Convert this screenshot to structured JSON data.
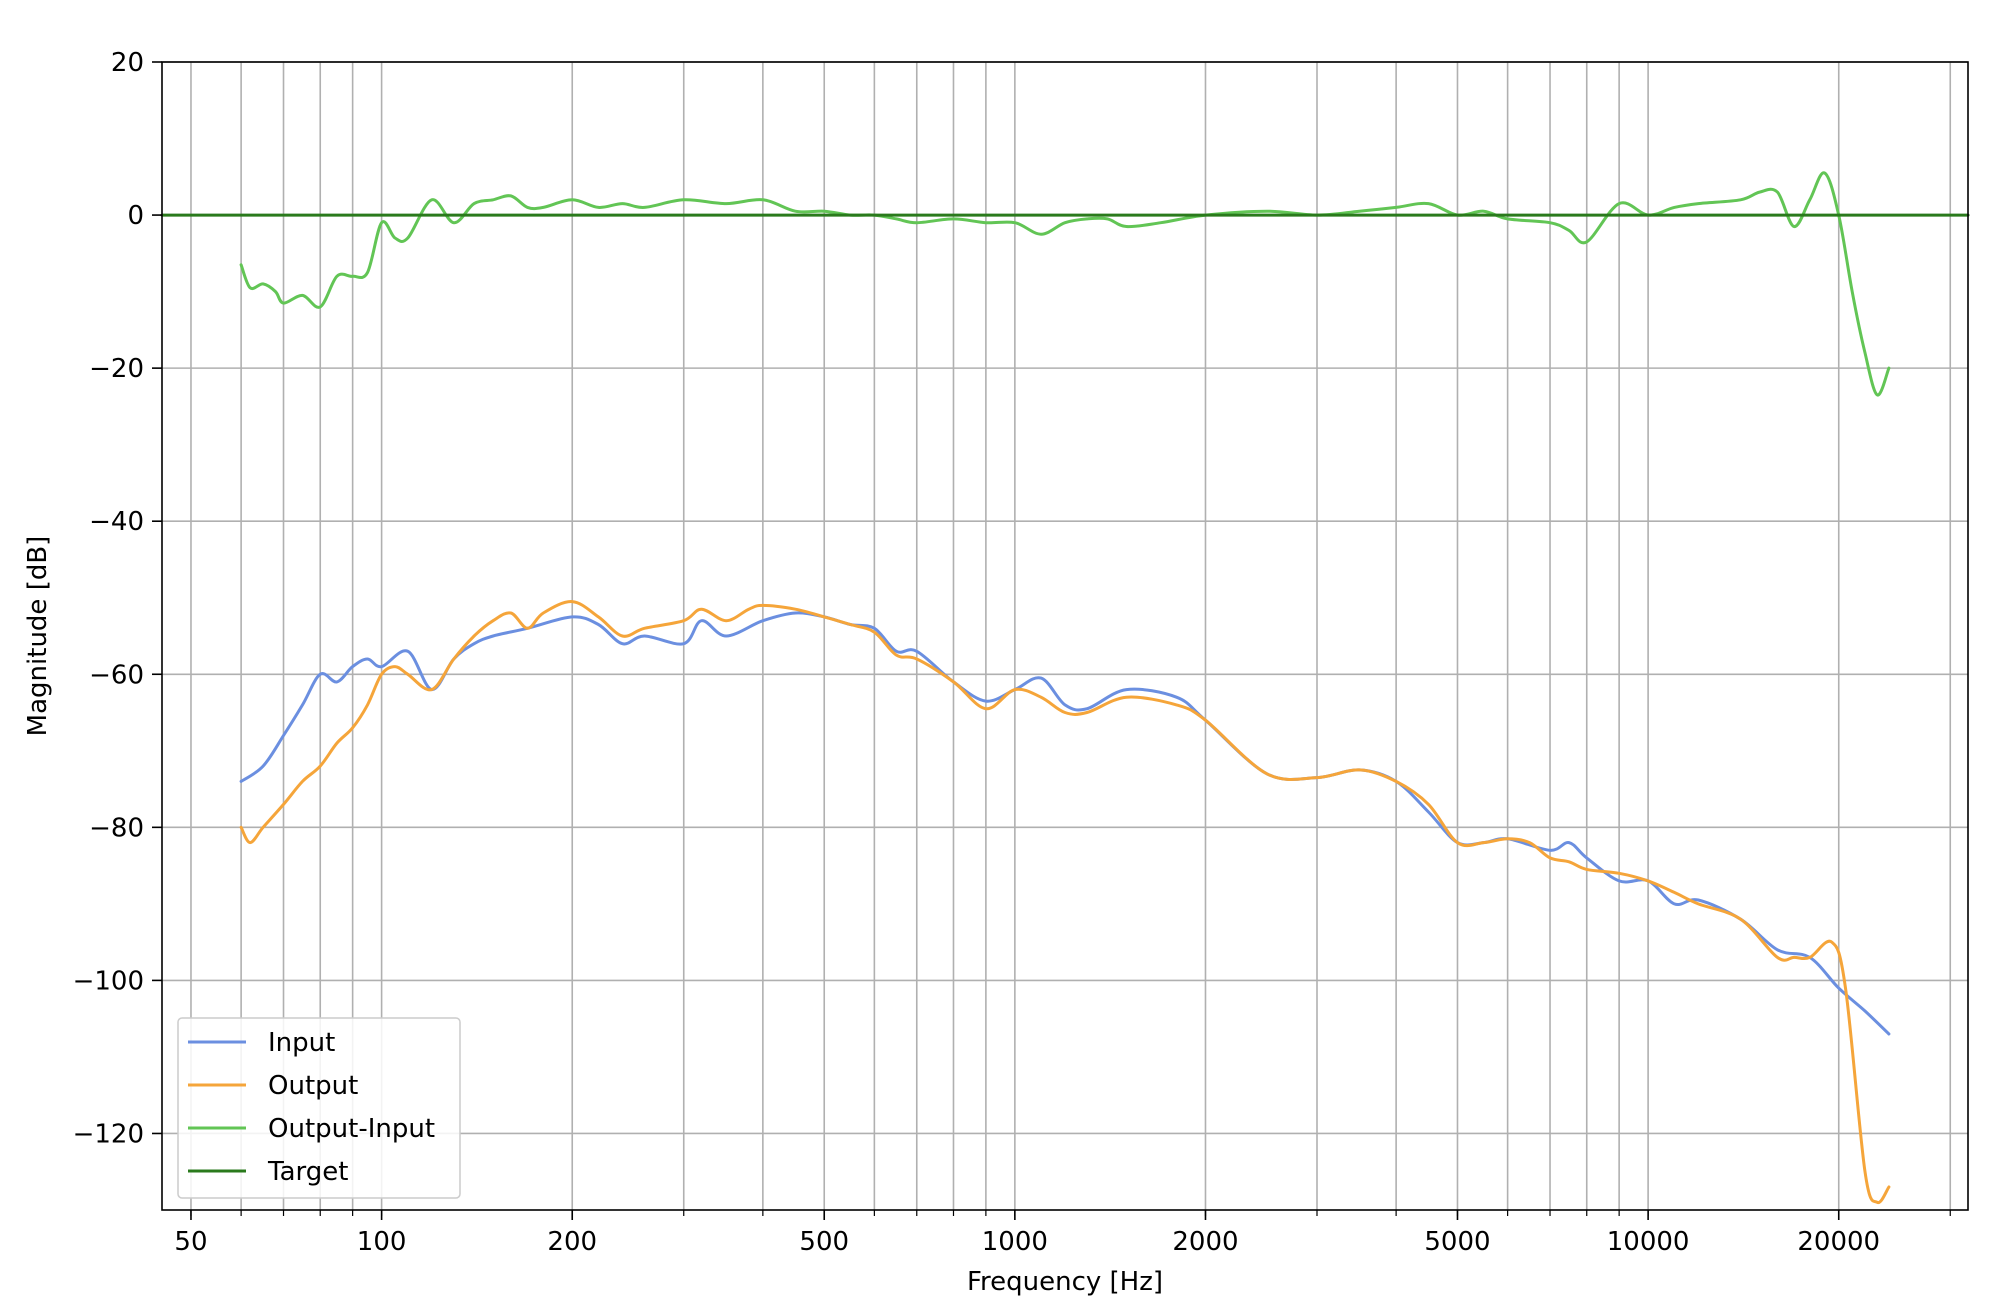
{
  "chart_data": {
    "type": "line",
    "xlabel": "Frequency [Hz]",
    "ylabel": "Magnitude [dB]",
    "xscale": "log",
    "xlim": [
      45,
      32000
    ],
    "ylim": [
      -130,
      20
    ],
    "xticks": [
      50,
      100,
      200,
      500,
      1000,
      2000,
      5000,
      10000,
      20000
    ],
    "xtick_labels": [
      "50",
      "100",
      "200",
      "500",
      "1000",
      "2000",
      "5000",
      "10000",
      "20000"
    ],
    "yticks": [
      20,
      0,
      -20,
      -40,
      -60,
      -80,
      -100,
      -120
    ],
    "ytick_labels": [
      "20",
      "0",
      "−20",
      "−40",
      "−60",
      "−80",
      "−100",
      "−120"
    ],
    "grid": true,
    "legend_position": "lower-left",
    "series": [
      {
        "name": "Input",
        "color": "#6b8fe0",
        "x": [
          60,
          65,
          70,
          75,
          80,
          85,
          90,
          95,
          100,
          110,
          120,
          130,
          140,
          150,
          170,
          200,
          220,
          240,
          260,
          300,
          320,
          350,
          400,
          450,
          500,
          550,
          600,
          650,
          700,
          800,
          900,
          1000,
          1100,
          1200,
          1300,
          1500,
          1800,
          2000,
          2500,
          3000,
          3500,
          4000,
          4500,
          5000,
          5500,
          6000,
          7000,
          7500,
          8000,
          9000,
          10000,
          11000,
          12000,
          14000,
          16000,
          18000,
          20000,
          22000,
          24000
        ],
        "y": [
          -74,
          -72,
          -68,
          -64,
          -60,
          -61,
          -59,
          -58,
          -59,
          -57,
          -62,
          -58,
          -56,
          -55,
          -54,
          -52.5,
          -53.5,
          -56,
          -55,
          -56,
          -53,
          -55,
          -53,
          -52,
          -52.5,
          -53.5,
          -54,
          -57,
          -57,
          -61,
          -63.5,
          -62,
          -60.5,
          -64,
          -64.5,
          -62,
          -63,
          -66,
          -73,
          -73.5,
          -72.5,
          -74,
          -78,
          -82,
          -82,
          -81.5,
          -83,
          -82,
          -84,
          -87,
          -87,
          -90,
          -89.5,
          -92,
          -96,
          -97,
          -101,
          -104,
          -107
        ]
      },
      {
        "name": "Output",
        "color": "#f5a53a",
        "x": [
          60,
          62,
          65,
          70,
          75,
          80,
          85,
          90,
          95,
          100,
          105,
          110,
          120,
          130,
          140,
          150,
          160,
          170,
          180,
          200,
          220,
          240,
          260,
          300,
          320,
          350,
          380,
          400,
          450,
          500,
          550,
          600,
          650,
          700,
          800,
          900,
          1000,
          1100,
          1200,
          1300,
          1500,
          1800,
          2000,
          2500,
          3000,
          3500,
          4000,
          4500,
          5000,
          5500,
          6000,
          6500,
          7000,
          7500,
          8000,
          9000,
          10000,
          11000,
          12000,
          14000,
          16000,
          17000,
          18000,
          19500,
          20500,
          22000,
          23000,
          24000
        ],
        "y": [
          -80,
          -82,
          -80,
          -77,
          -74,
          -72,
          -69,
          -67,
          -64,
          -60,
          -59,
          -60,
          -62,
          -58,
          -55,
          -53,
          -52,
          -54,
          -52,
          -50.5,
          -52.5,
          -55,
          -54,
          -53,
          -51.5,
          -53,
          -51.5,
          -51,
          -51.5,
          -52.5,
          -53.5,
          -54.5,
          -57.5,
          -58,
          -61,
          -64.5,
          -62,
          -63,
          -65,
          -65,
          -63,
          -64,
          -66,
          -73,
          -73.5,
          -72.5,
          -74,
          -77,
          -82,
          -82,
          -81.5,
          -82,
          -84,
          -84.5,
          -85.5,
          -86,
          -87,
          -88.5,
          -90,
          -92,
          -97,
          -97,
          -97,
          -95,
          -101,
          -125,
          -129,
          -127
        ]
      },
      {
        "name": "Output-Input",
        "color": "#62c555",
        "x": [
          60,
          62,
          65,
          68,
          70,
          75,
          80,
          85,
          90,
          95,
          100,
          105,
          110,
          120,
          130,
          140,
          150,
          160,
          170,
          180,
          200,
          220,
          240,
          260,
          300,
          350,
          400,
          450,
          500,
          550,
          600,
          650,
          700,
          800,
          900,
          1000,
          1100,
          1200,
          1300,
          1400,
          1500,
          1700,
          2000,
          2500,
          3000,
          3500,
          4000,
          4500,
          5000,
          5500,
          6000,
          7000,
          7500,
          8000,
          9000,
          10000,
          11000,
          12000,
          14000,
          15000,
          16000,
          17000,
          18000,
          19000,
          20000,
          21000,
          22000,
          23000,
          24000
        ],
        "y": [
          -6.5,
          -9.5,
          -9,
          -10,
          -11.5,
          -10.5,
          -12,
          -8,
          -8,
          -7.5,
          -1,
          -3,
          -3,
          2,
          -1,
          1.5,
          2,
          2.5,
          1,
          1,
          2,
          1,
          1.5,
          1,
          2,
          1.5,
          2,
          0.5,
          0.5,
          0,
          0,
          -0.5,
          -1,
          -0.5,
          -1,
          -1,
          -2.5,
          -1,
          -0.5,
          -0.5,
          -1.5,
          -1,
          0,
          0.5,
          0,
          0.5,
          1,
          1.5,
          0,
          0.5,
          -0.5,
          -1,
          -2,
          -3.5,
          1.5,
          0,
          1,
          1.5,
          2,
          3,
          3,
          -1.5,
          2,
          5.5,
          0,
          -10,
          -18,
          -23.5,
          -20
        ]
      },
      {
        "name": "Target",
        "color": "#2a7a1c",
        "x": [
          45,
          32000
        ],
        "y": [
          0,
          0
        ]
      }
    ]
  }
}
